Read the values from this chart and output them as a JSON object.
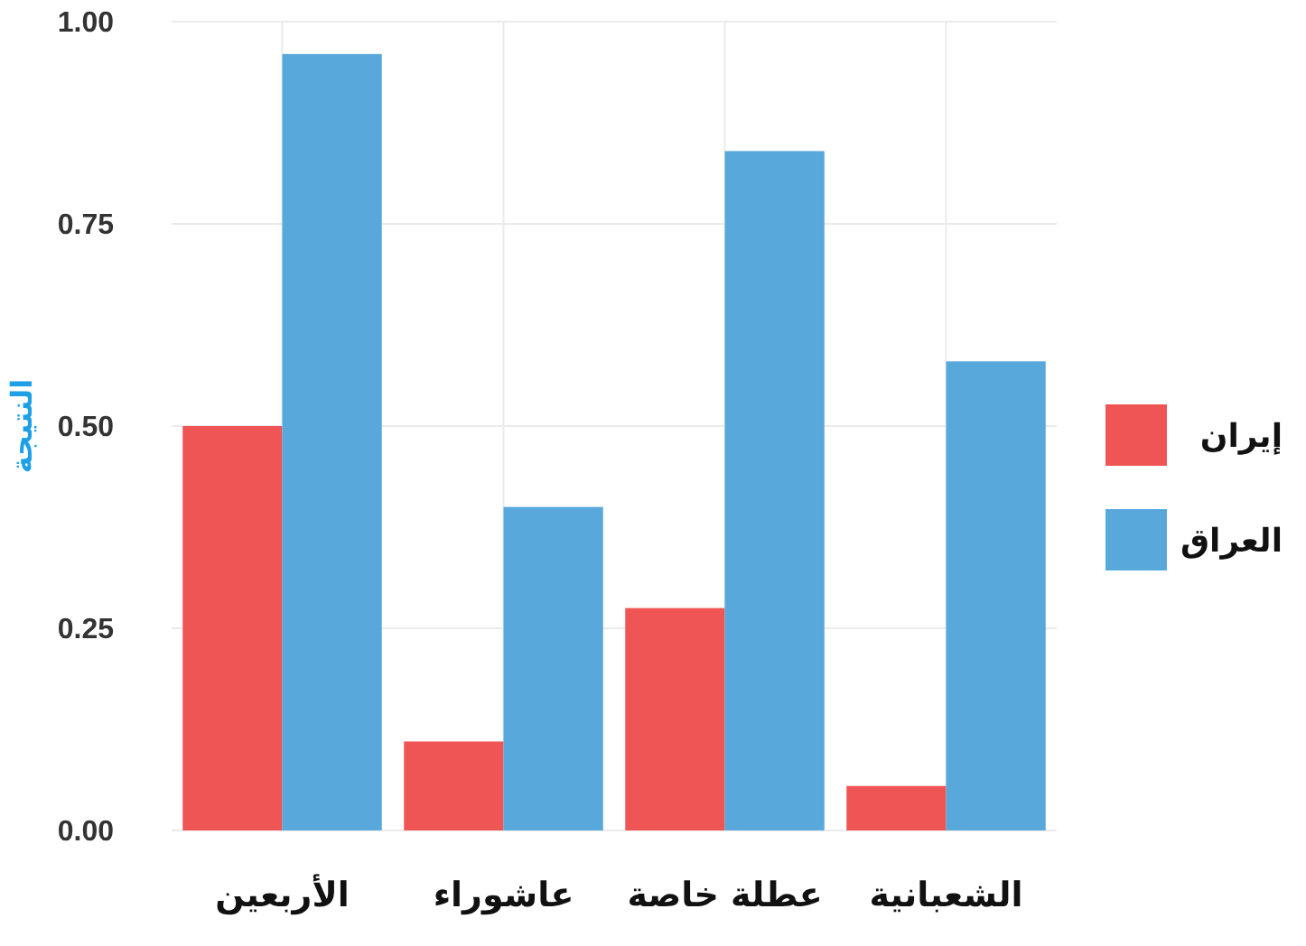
{
  "chart_data": {
    "type": "bar",
    "ylabel": "النتيجة",
    "categories": [
      "الأربعين",
      "عاشوراء",
      "عطلة خاصة",
      "الشعبانية"
    ],
    "series": [
      {
        "name": "إيران",
        "color": "#ef5555",
        "values": [
          0.5,
          0.11,
          0.275,
          0.055
        ]
      },
      {
        "name": "العراق",
        "color": "#58a8dc",
        "values": [
          0.96,
          0.4,
          0.84,
          0.58
        ]
      }
    ],
    "ylim": [
      0,
      1
    ],
    "yticks": [
      {
        "value": 0,
        "label": "0.00"
      },
      {
        "value": 0.25,
        "label": "0.25"
      },
      {
        "value": 0.5,
        "label": "0.50"
      },
      {
        "value": 0.75,
        "label": "0.75"
      },
      {
        "value": 1,
        "label": "1.00"
      }
    ],
    "grid": true,
    "legend": "right"
  }
}
